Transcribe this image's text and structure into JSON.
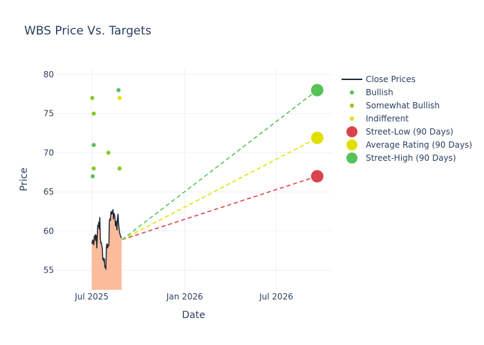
{
  "chart_data": {
    "type": "line",
    "title": "WBS Price Vs. Targets",
    "xlabel": "Date",
    "ylabel": "Price",
    "x_range": [
      "2025-04-20",
      "2026-10-19"
    ],
    "y_range": [
      52.5,
      80.7
    ],
    "x_ticks": [
      {
        "date": "2025-07-01",
        "label": "Jul 2025"
      },
      {
        "date": "2026-01-01",
        "label": "Jan 2026"
      },
      {
        "date": "2026-07-01",
        "label": "Jul 2026"
      }
    ],
    "y_ticks": [
      55,
      60,
      65,
      70,
      75,
      80
    ],
    "grid": true,
    "legend_position": "top-right",
    "series": [
      {
        "name": "Close Prices",
        "kind": "line",
        "color": "#1f2937",
        "fill_color": "#fcbb9a",
        "points": [
          [
            "2025-07-01",
            58.6
          ],
          [
            "2025-07-02",
            58.4
          ],
          [
            "2025-07-03",
            58.9
          ],
          [
            "2025-07-05",
            58.2
          ],
          [
            "2025-07-06",
            59.4
          ],
          [
            "2025-07-07",
            58.9
          ],
          [
            "2025-07-08",
            59.6
          ],
          [
            "2025-07-09",
            58.7
          ],
          [
            "2025-07-10",
            59.5
          ],
          [
            "2025-07-11",
            57.8
          ],
          [
            "2025-07-12",
            59.4
          ],
          [
            "2025-07-13",
            60.8
          ],
          [
            "2025-07-14",
            60.5
          ],
          [
            "2025-07-15",
            61.2
          ],
          [
            "2025-07-16",
            60.2
          ],
          [
            "2025-07-17",
            61.8
          ],
          [
            "2025-07-18",
            59.2
          ],
          [
            "2025-07-19",
            58.4
          ],
          [
            "2025-07-20",
            58.6
          ],
          [
            "2025-07-21",
            58.1
          ],
          [
            "2025-07-22",
            57.8
          ],
          [
            "2025-07-23",
            56.3
          ],
          [
            "2025-07-24",
            56.6
          ],
          [
            "2025-07-25",
            56.1
          ],
          [
            "2025-07-26",
            56.5
          ],
          [
            "2025-07-27",
            55.4
          ],
          [
            "2025-07-28",
            55.3
          ],
          [
            "2025-07-29",
            55.2
          ],
          [
            "2025-07-30",
            57.9
          ],
          [
            "2025-07-31",
            58.4
          ],
          [
            "2025-08-01",
            57.8
          ],
          [
            "2025-08-02",
            58.2
          ],
          [
            "2025-08-03",
            58.1
          ],
          [
            "2025-08-04",
            58.3
          ],
          [
            "2025-08-05",
            61.3
          ],
          [
            "2025-08-06",
            61.6
          ],
          [
            "2025-08-07",
            61.3
          ],
          [
            "2025-08-08",
            62.5
          ],
          [
            "2025-08-09",
            62.1
          ],
          [
            "2025-08-10",
            62.4
          ],
          [
            "2025-08-11",
            62.2
          ],
          [
            "2025-08-12",
            62.8
          ],
          [
            "2025-08-13",
            61.5
          ],
          [
            "2025-08-14",
            62.3
          ],
          [
            "2025-08-15",
            62.1
          ],
          [
            "2025-08-16",
            61.7
          ],
          [
            "2025-08-17",
            60.6
          ],
          [
            "2025-08-18",
            61.3
          ],
          [
            "2025-08-19",
            61.0
          ],
          [
            "2025-08-20",
            60.1
          ],
          [
            "2025-08-21",
            61.7
          ],
          [
            "2025-08-22",
            62.2
          ],
          [
            "2025-08-23",
            61.1
          ],
          [
            "2025-08-24",
            60.4
          ],
          [
            "2025-08-25",
            59.8
          ],
          [
            "2025-08-26",
            59.6
          ],
          [
            "2025-08-27",
            59.4
          ],
          [
            "2025-08-28",
            59.2
          ],
          [
            "2025-08-29",
            59.1
          ]
        ]
      },
      {
        "name": "Bullish",
        "kind": "markers",
        "color": "#5ac05a",
        "points": [
          [
            "2025-07-03",
            67
          ],
          [
            "2025-07-05",
            71
          ],
          [
            "2025-08-23",
            78
          ]
        ]
      },
      {
        "name": "Somewhat Bullish",
        "kind": "markers",
        "color": "#8ac926",
        "points": [
          [
            "2025-07-02",
            77
          ],
          [
            "2025-07-05",
            75
          ],
          [
            "2025-07-05",
            68
          ],
          [
            "2025-08-03",
            70
          ],
          [
            "2025-08-25",
            68
          ]
        ]
      },
      {
        "name": "Indifferent",
        "kind": "markers",
        "color": "#e0e000",
        "points": [
          [
            "2025-08-25",
            77
          ]
        ]
      }
    ],
    "targets": [
      {
        "name": "Street-Low (90 Days)",
        "color": "#d9434b",
        "date": "2026-09-20",
        "value": 67
      },
      {
        "name": "Average Rating (90 Days)",
        "color": "#e0e000",
        "date": "2026-09-20",
        "value": 71.9
      },
      {
        "name": "Street-High (90 Days)",
        "color": "#55c35a",
        "date": "2026-09-20",
        "value": 78
      }
    ],
    "projection_start": {
      "date": "2025-08-30",
      "value": 58.9
    }
  }
}
